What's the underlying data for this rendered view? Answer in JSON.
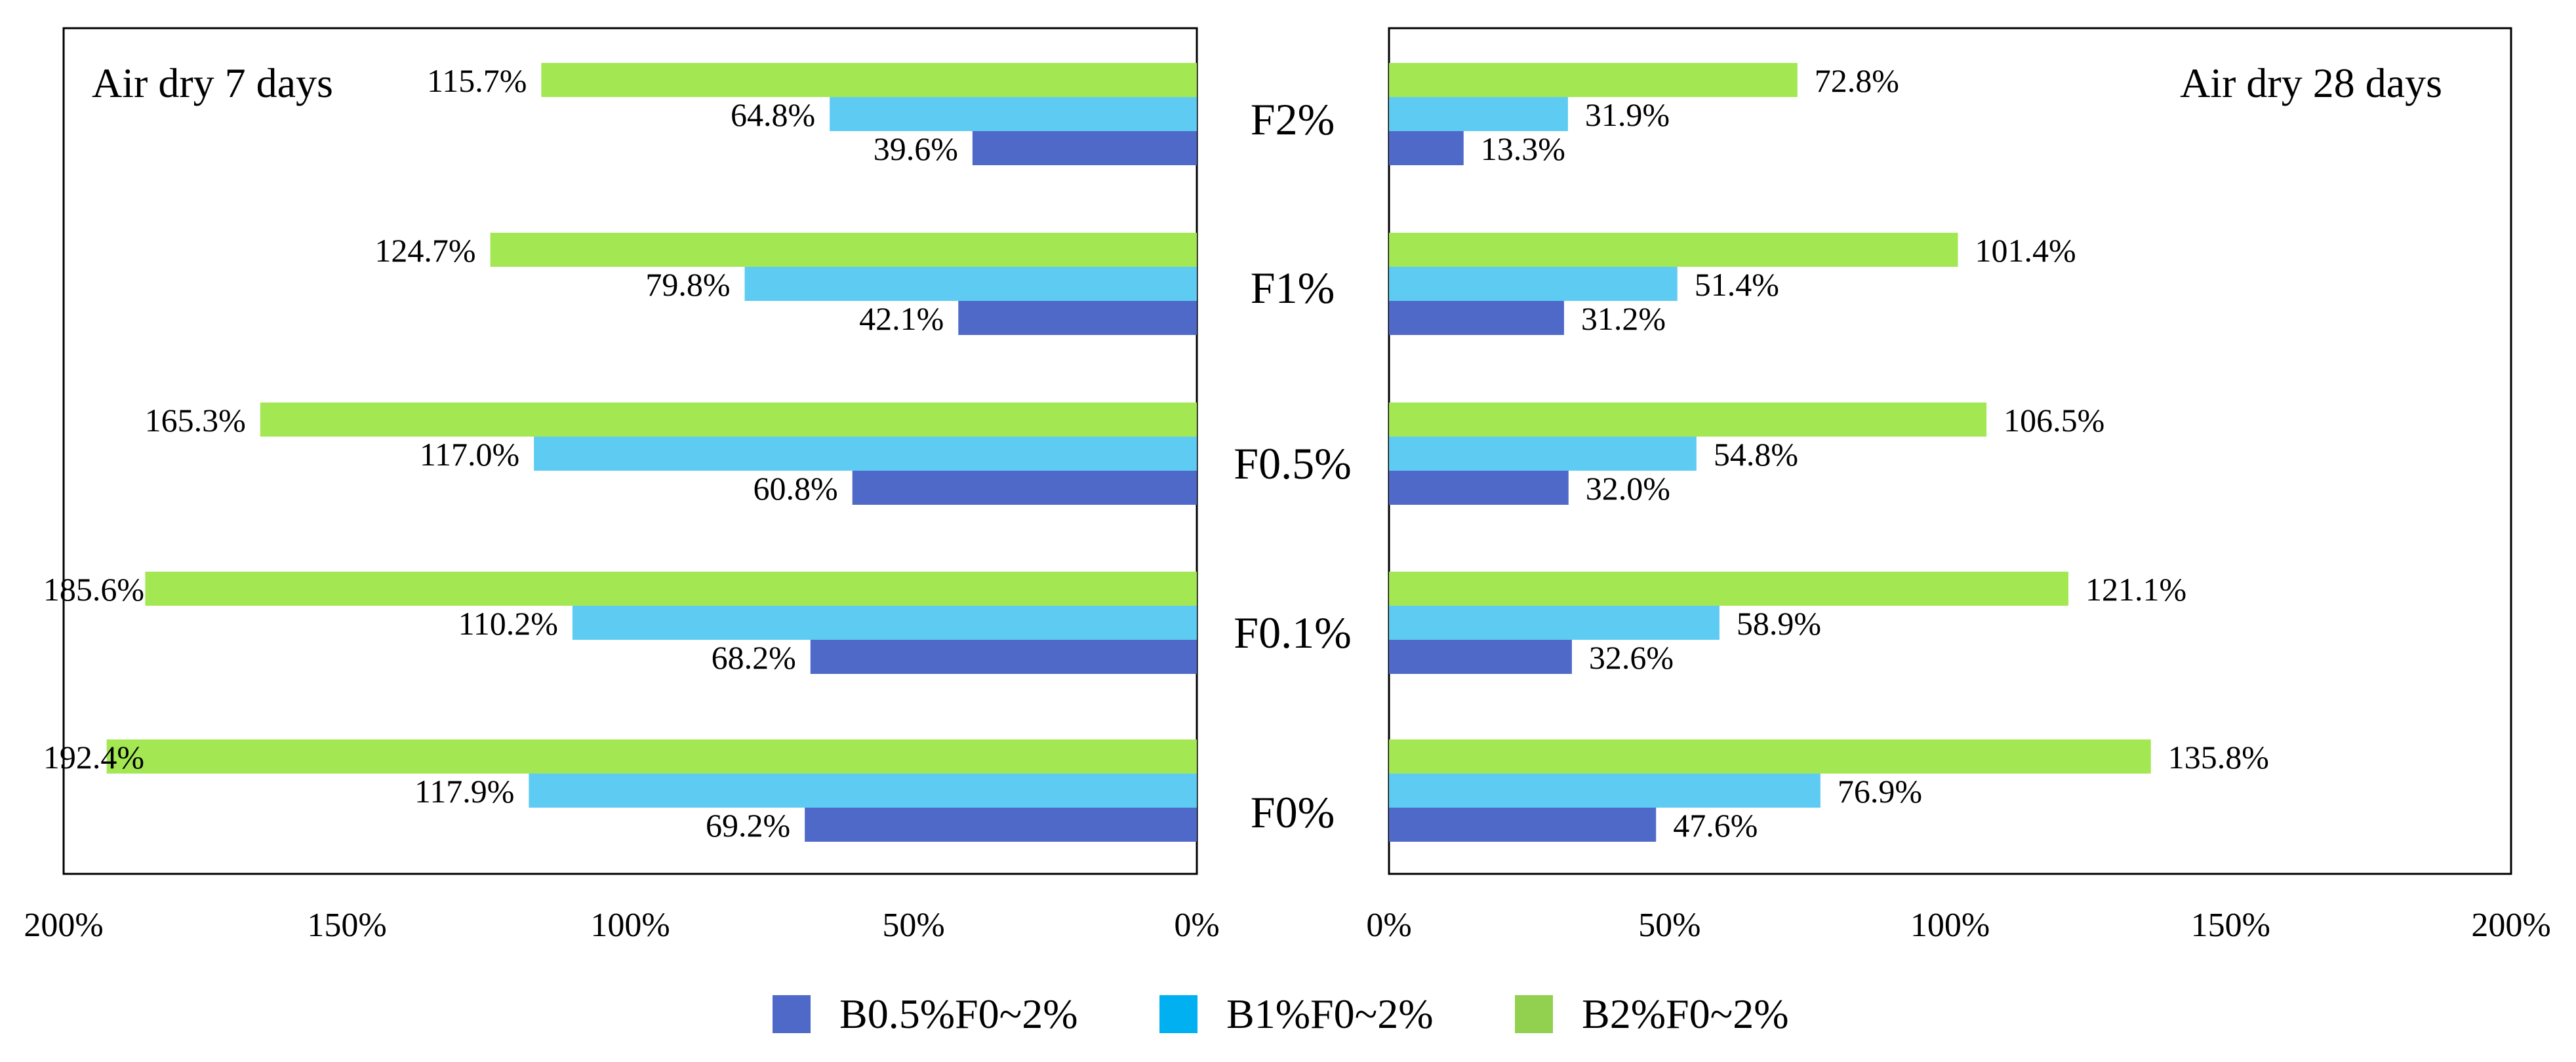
{
  "colors": {
    "series": [
      "#4f69c9",
      "#5ecbf2",
      "#a3e852"
    ],
    "legend_swatches": [
      "#4f69c9",
      "#00b0f0",
      "#92d050"
    ],
    "frame": "#000000",
    "text": "#000000"
  },
  "chart_data": {
    "type": "bar",
    "orientation": "horizontal",
    "layout": "mirrored-butterfly",
    "categories": [
      "F2%",
      "F1%",
      "F0.5%",
      "F0.1%",
      "F0%"
    ],
    "series": [
      {
        "name": "B0.5%F0~2%"
      },
      {
        "name": "B1%F0~2%"
      },
      {
        "name": "B2%F0~2%"
      }
    ],
    "panels": [
      {
        "title": "Air dry 7 days",
        "side": "left",
        "xlim": [
          0,
          200
        ],
        "ticks": [
          0,
          50,
          100,
          150,
          200
        ],
        "tick_labels": [
          "0%",
          "50%",
          "100%",
          "150%",
          "200%"
        ],
        "values": [
          [
            39.6,
            42.1,
            60.8,
            68.2,
            69.2
          ],
          [
            64.8,
            79.8,
            117.0,
            110.2,
            117.9
          ],
          [
            115.7,
            124.7,
            165.3,
            185.6,
            192.4
          ]
        ],
        "labels": [
          [
            "39.6%",
            "42.1%",
            "60.8%",
            "68.2%",
            "69.2%"
          ],
          [
            "64.8%",
            "79.8%",
            "117.0%",
            "110.2%",
            "117.9%"
          ],
          [
            "115.7%",
            "124.7%",
            "165.3%",
            "185.6%",
            "192.4%"
          ]
        ]
      },
      {
        "title": "Air dry 28 days",
        "side": "right",
        "xlim": [
          0,
          200
        ],
        "ticks": [
          0,
          50,
          100,
          150,
          200
        ],
        "tick_labels": [
          "0%",
          "50%",
          "100%",
          "150%",
          "200%"
        ],
        "values": [
          [
            13.3,
            31.2,
            32.0,
            32.6,
            47.6
          ],
          [
            31.9,
            51.4,
            54.8,
            58.9,
            76.9
          ],
          [
            72.8,
            101.4,
            106.5,
            121.1,
            135.8
          ]
        ],
        "labels": [
          [
            "13.3%",
            "31.2%",
            "32.0%",
            "32.6%",
            "47.6%"
          ],
          [
            "31.9%",
            "51.4%",
            "54.8%",
            "58.9%",
            "76.9%"
          ],
          [
            "72.8%",
            "101.4%",
            "106.5%",
            "121.1%",
            "135.8%"
          ]
        ]
      }
    ],
    "legend_position": "bottom-center",
    "grid": false
  }
}
